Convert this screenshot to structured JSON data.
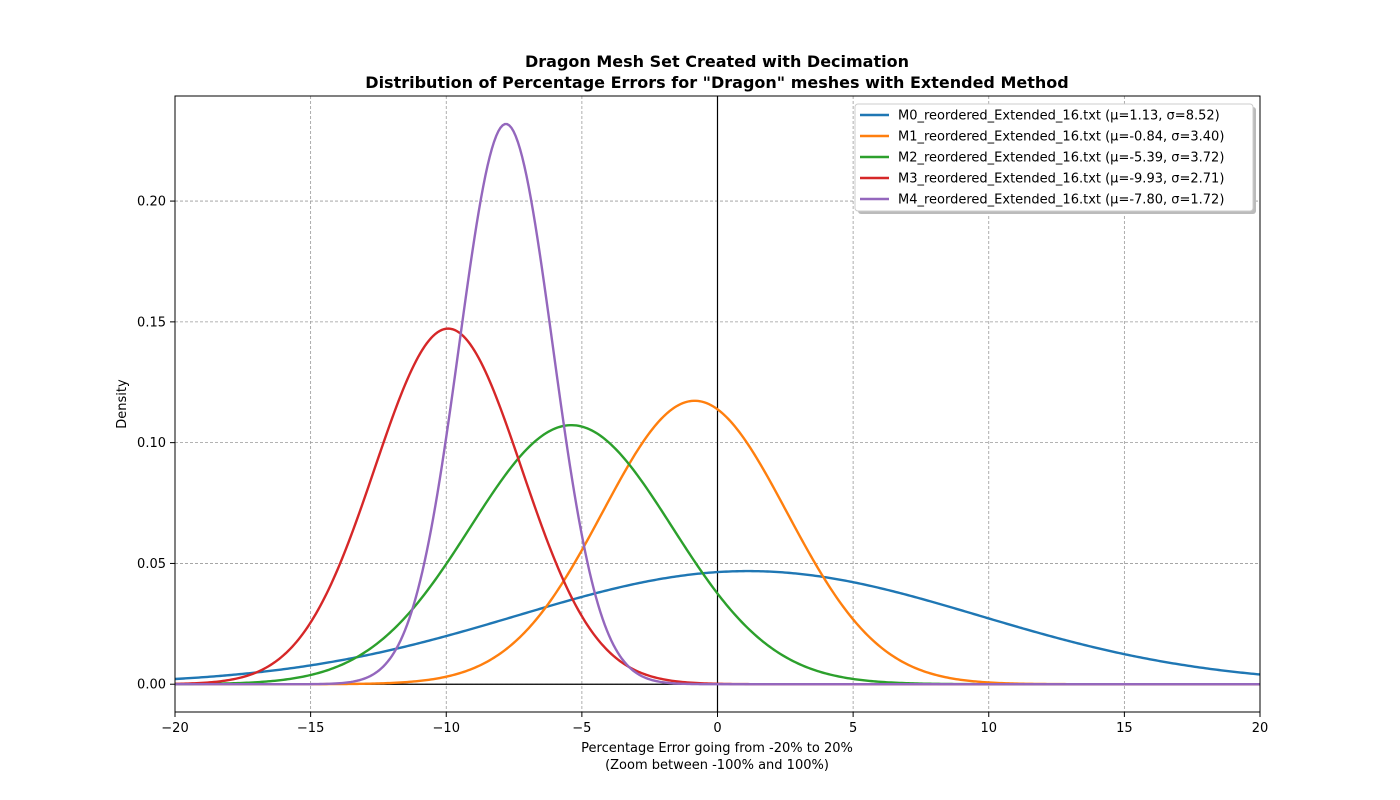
{
  "chart_data": {
    "type": "line",
    "title": "Dragon Mesh Set Created with Decimation",
    "subtitle": "Distribution of Percentage Errors for \"Dragon\" meshes with Extended Method",
    "xlabel": "Percentage Error going from -20% to 20%",
    "xlabel2": "(Zoom between -100% and 100%)",
    "ylabel": "Density",
    "xlim": [
      -20,
      20
    ],
    "ylim": [
      -0.0115,
      0.2435
    ],
    "xticks": [
      -20,
      -15,
      -10,
      -5,
      0,
      5,
      10,
      15,
      20
    ],
    "xtick_labels": [
      "−20",
      "−15",
      "−10",
      "−5",
      "0",
      "5",
      "10",
      "15",
      "20"
    ],
    "yticks": [
      0,
      0.05,
      0.1,
      0.15,
      0.2
    ],
    "ytick_labels": [
      "0.00",
      "0.05",
      "0.10",
      "0.15",
      "0.20"
    ],
    "grid": true,
    "reference_lines": {
      "x": 0,
      "y": 0
    },
    "legend_position": "upper-right",
    "series": [
      {
        "name": "M0_reordered_Extended_16.txt (μ=1.13, σ=8.52)",
        "mu": 1.13,
        "sigma": 8.52,
        "color": "#1f77b4"
      },
      {
        "name": "M1_reordered_Extended_16.txt (μ=-0.84, σ=3.40)",
        "mu": -0.84,
        "sigma": 3.4,
        "color": "#ff7f0e"
      },
      {
        "name": "M2_reordered_Extended_16.txt (μ=-5.39, σ=3.72)",
        "mu": -5.39,
        "sigma": 3.72,
        "color": "#2ca02c"
      },
      {
        "name": "M3_reordered_Extended_16.txt (μ=-9.93, σ=2.71)",
        "mu": -9.93,
        "sigma": 2.71,
        "color": "#d62728"
      },
      {
        "name": "M4_reordered_Extended_16.txt (μ=-7.80, σ=1.72)",
        "mu": -7.8,
        "sigma": 1.72,
        "color": "#9467bd"
      }
    ]
  }
}
